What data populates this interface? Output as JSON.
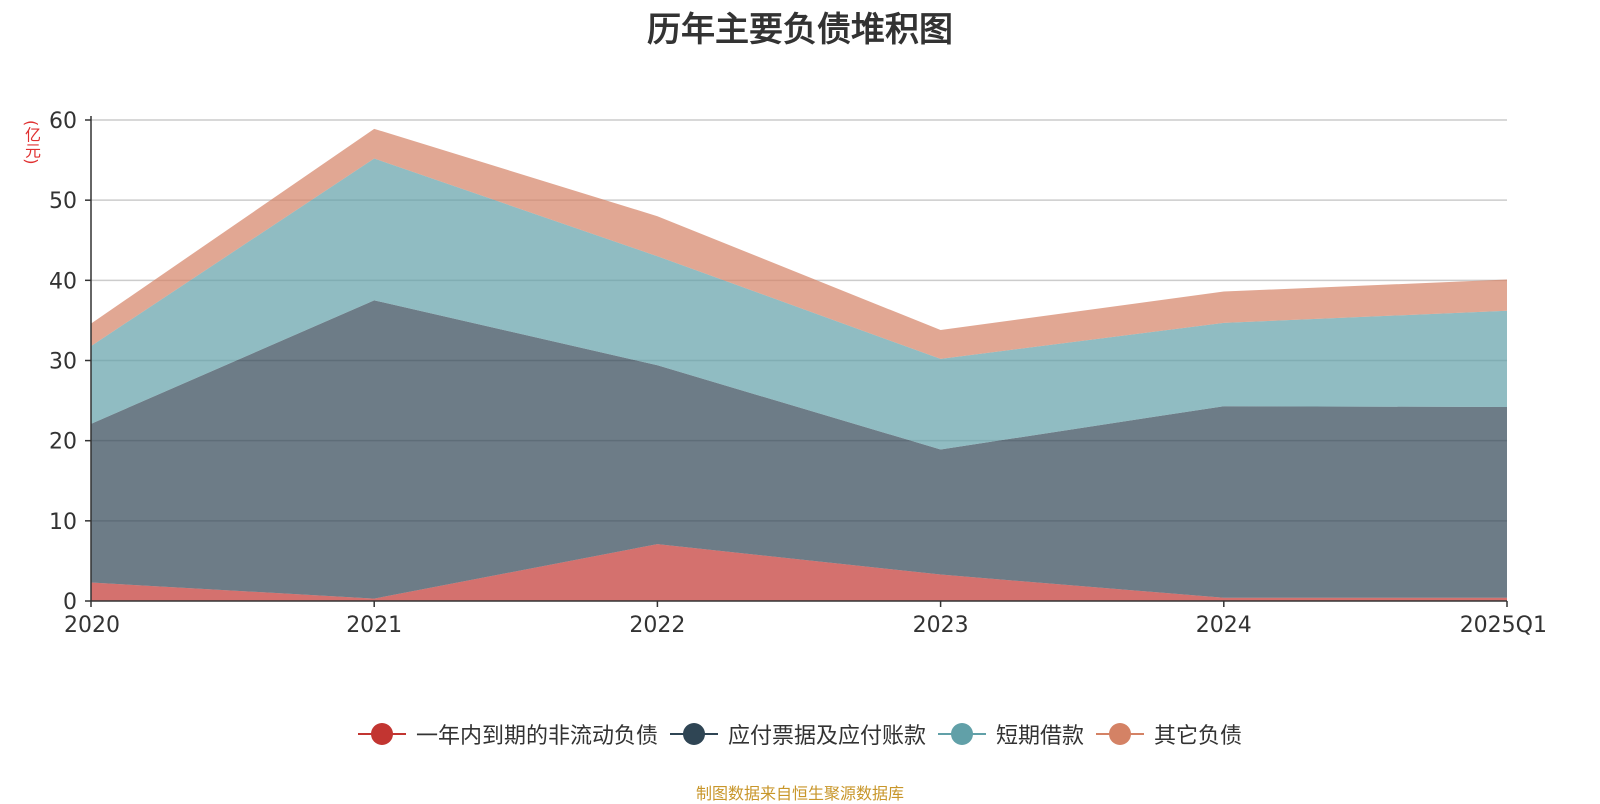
{
  "chart_data": {
    "type": "area",
    "stacked": true,
    "title": "历年主要负债堆积图",
    "unit_label": "(亿元)",
    "categories": [
      "2020",
      "2021",
      "2022",
      "2023",
      "2024",
      "2025Q1"
    ],
    "ylim": [
      0,
      60
    ],
    "yticks": [
      0,
      10,
      20,
      30,
      40,
      50,
      60
    ],
    "grid": true,
    "legend_position": "bottom",
    "series": [
      {
        "name": "一年内到期的非流动负债",
        "color": "#c23531",
        "values": [
          2.3,
          0.3,
          7.1,
          3.3,
          0.4,
          0.4
        ]
      },
      {
        "name": "应付票据及应付账款",
        "color": "#2f4554",
        "values": [
          19.8,
          37.2,
          22.3,
          15.6,
          23.9,
          23.8
        ]
      },
      {
        "name": "短期借款",
        "color": "#61a0a8",
        "values": [
          9.7,
          17.7,
          13.6,
          11.3,
          10.4,
          12.0
        ]
      },
      {
        "name": "其它负债",
        "color": "#d48265",
        "values": [
          2.8,
          3.7,
          5.0,
          3.6,
          3.9,
          3.9
        ]
      }
    ],
    "source": "制图数据来自恒生聚源数据库"
  }
}
